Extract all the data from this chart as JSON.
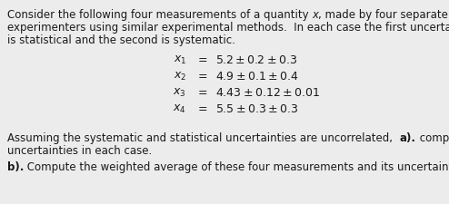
{
  "bg_color": "#ececec",
  "text_color": "#1a1a1a",
  "font_size": 8.5,
  "eq_font_size": 9.0,
  "line1": "Consider the following four measurements of a quantity ",
  "line1_italic": "x",
  "line1_end": ", made by four separate groups of",
  "line2": "experimenters using similar experimental methods.  In each case the first uncertainty given",
  "line3": "is statistical and the second is systematic.",
  "eq_lhs": [
    "x_1",
    "x_2",
    "x_3",
    "x_4"
  ],
  "eq_rhs": [
    "5.2 \\pm 0.2 \\pm 0.3",
    "4.9 \\pm 0.1 \\pm 0.4",
    "4.43 \\pm 0.12 \\pm 0.01",
    "5.5 \\pm 0.3 \\pm 0.3"
  ],
  "para2_plain": "Assuming the systematic and statistical uncertainties are uncorrelated,  ",
  "para2_bold": "a).",
  "para2_rest": " compute the total",
  "para2_line2": "uncertainties in each case.",
  "para3_bold": "b).",
  "para3_rest": " Compute the weighted average of these four measurements and its uncertainty."
}
